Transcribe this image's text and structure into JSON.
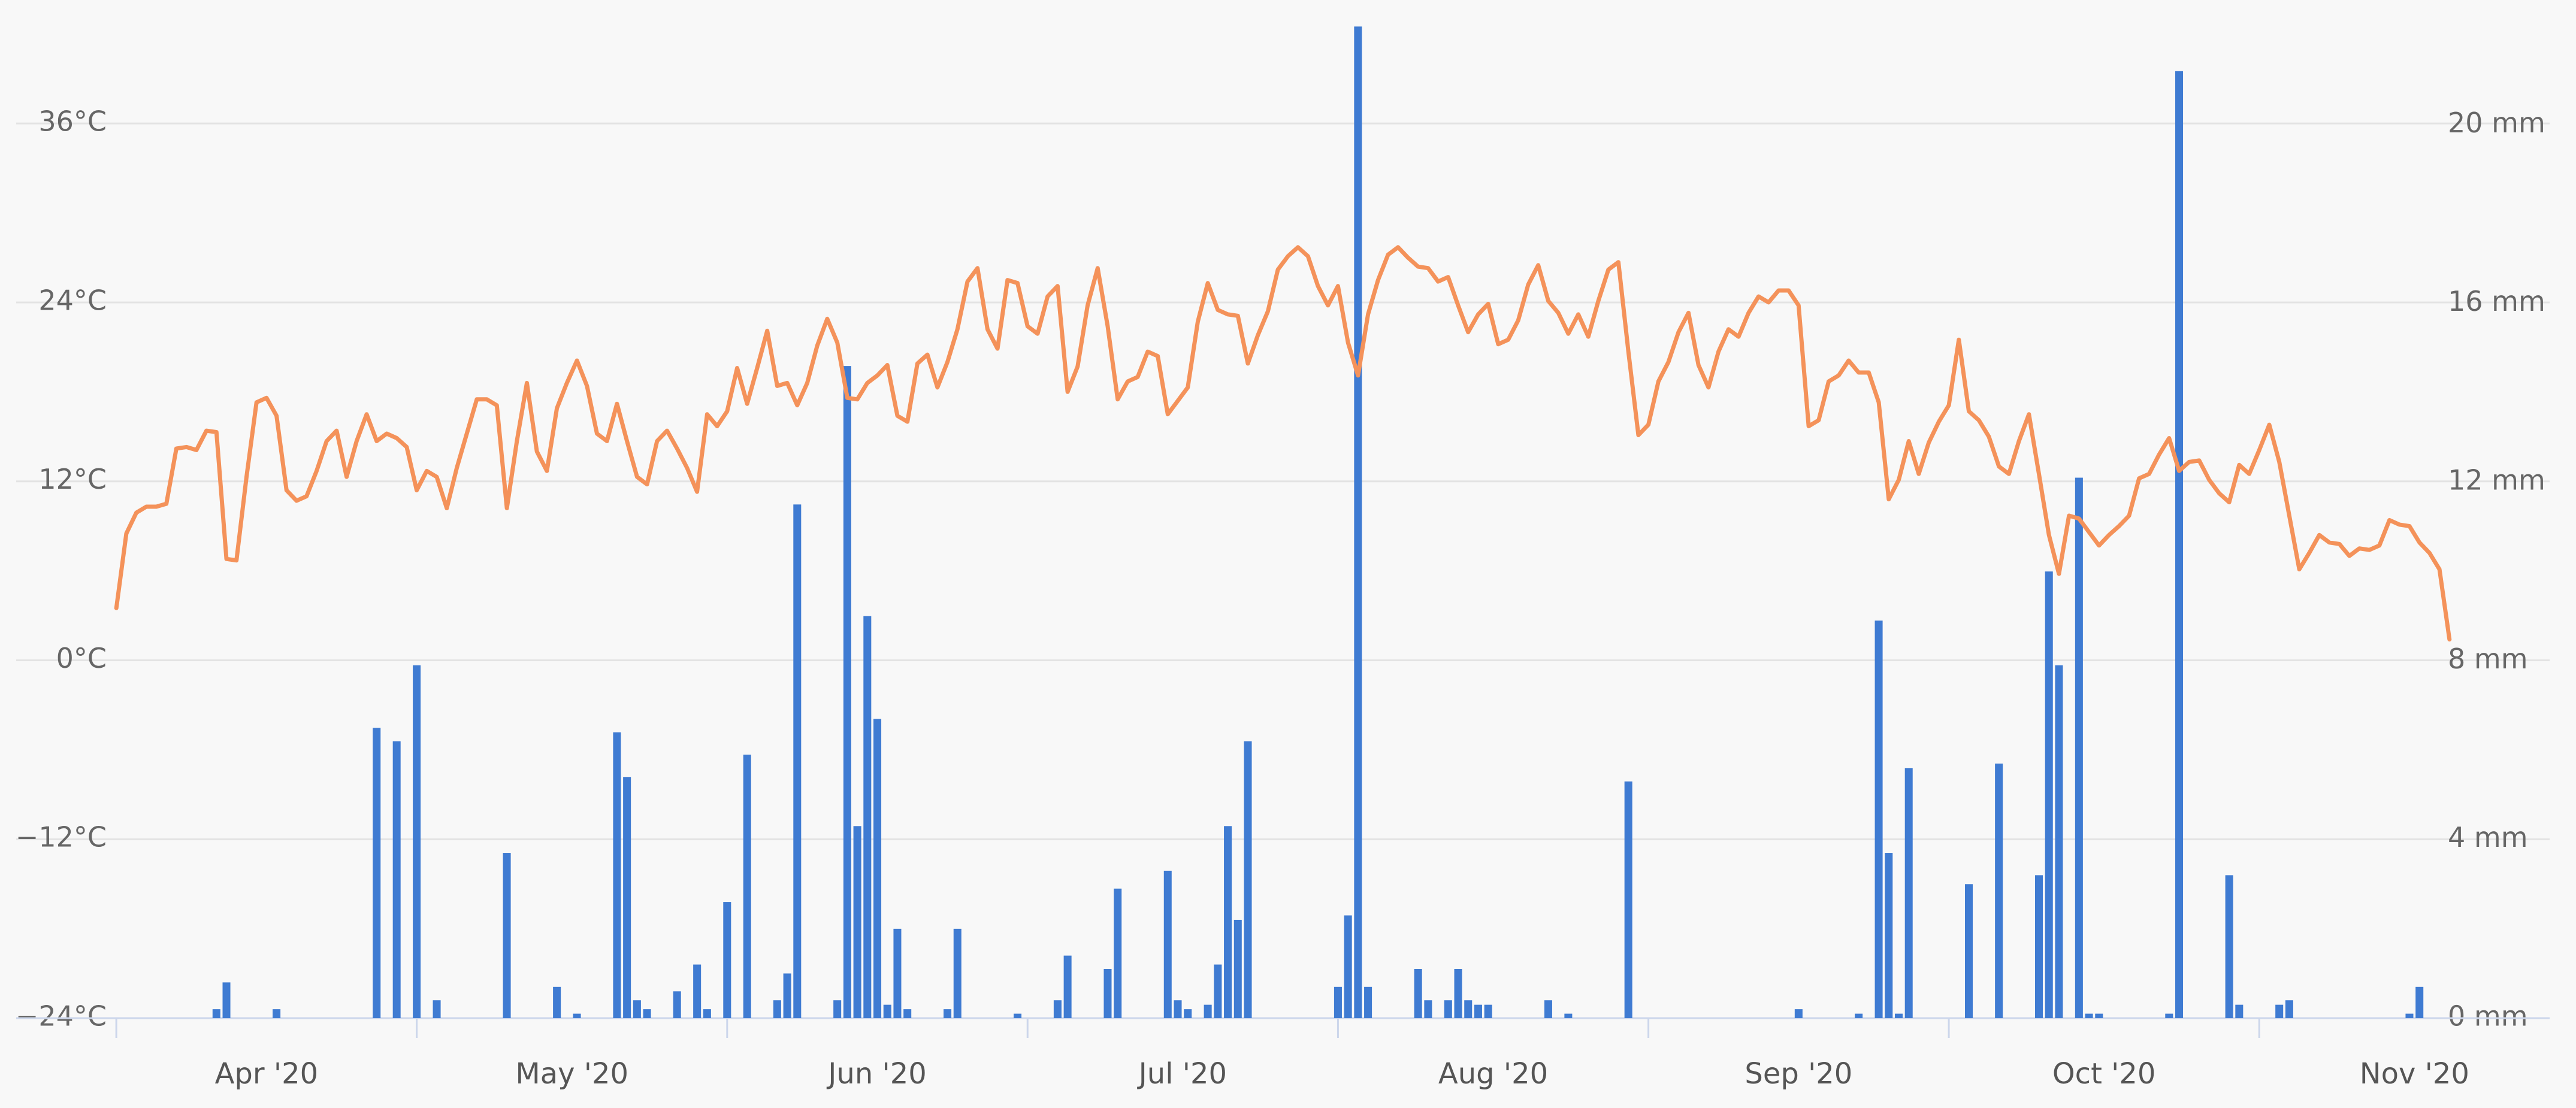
{
  "chart_data": {
    "type": "combo",
    "x": [
      0,
      1,
      2,
      3,
      4,
      5,
      6,
      7,
      8,
      9,
      10,
      11,
      12,
      13,
      14,
      15,
      16,
      17,
      18,
      19,
      20,
      21,
      22,
      23,
      24,
      25,
      26,
      27,
      28,
      29,
      30,
      31,
      32,
      33,
      34,
      35,
      36,
      37,
      38,
      39,
      40,
      41,
      42,
      43,
      44,
      45,
      46,
      47,
      48,
      49,
      50,
      51,
      52,
      53,
      54,
      55,
      56,
      57,
      58,
      59,
      60,
      61,
      62,
      63,
      64,
      65,
      66,
      67,
      68,
      69,
      70,
      71,
      72,
      73,
      74,
      75,
      76,
      77,
      78,
      79,
      80,
      81,
      82,
      83,
      84,
      85,
      86,
      87,
      88,
      89,
      90,
      91,
      92,
      93,
      94,
      95,
      96,
      97,
      98,
      99,
      100,
      101,
      102,
      103,
      104,
      105,
      106,
      107,
      108,
      109,
      110,
      111,
      112,
      113,
      114,
      115,
      116,
      117,
      118,
      119,
      120,
      121,
      122,
      123,
      124,
      125,
      126,
      127,
      128,
      129,
      130,
      131,
      132,
      133,
      134,
      135,
      136,
      137,
      138,
      139,
      140,
      141,
      142,
      143,
      144,
      145,
      146,
      147,
      148,
      149,
      150,
      151,
      152,
      153,
      154,
      155,
      156,
      157,
      158,
      159,
      160,
      161,
      162,
      163,
      164,
      165,
      166,
      167,
      168,
      169,
      170,
      171,
      172,
      173,
      174,
      175,
      176,
      177,
      178,
      179,
      180,
      181,
      182,
      183,
      184,
      185,
      186,
      187,
      188,
      189,
      190,
      191,
      192,
      193,
      194,
      195,
      196,
      197,
      198,
      199,
      200,
      201,
      202,
      203,
      204,
      205,
      206,
      207,
      208,
      209,
      210,
      211,
      212,
      213,
      214,
      215,
      216,
      217,
      218,
      219,
      220,
      221,
      222,
      223,
      224,
      225,
      226,
      227,
      228,
      229,
      230,
      231,
      232,
      233
    ],
    "xlim": [
      -10,
      243
    ],
    "xticks": [
      {
        "value": 0,
        "label": "Apr '20"
      },
      {
        "value": 30,
        "label": "May '20"
      },
      {
        "value": 61,
        "label": "Jun '20"
      },
      {
        "value": 91,
        "label": "Jul '20"
      },
      {
        "value": 122,
        "label": "Aug '20"
      },
      {
        "value": 153,
        "label": "Sep '20"
      },
      {
        "value": 183,
        "label": "Oct '20"
      },
      {
        "value": 214,
        "label": "Nov '20"
      }
    ],
    "ylim": [
      -24,
      44
    ],
    "yticks": [
      {
        "value": -24,
        "label": "−24°C"
      },
      {
        "value": -12,
        "label": "−12°C"
      },
      {
        "value": 0,
        "label": "0°C"
      },
      {
        "value": 12,
        "label": "12°C"
      },
      {
        "value": 24,
        "label": "24°C"
      },
      {
        "value": 36,
        "label": "36°C"
      }
    ],
    "y2lim": [
      0,
      22.7
    ],
    "y2ticks": [
      {
        "value": 0,
        "label": "0 mm"
      },
      {
        "value": 4,
        "label": "4 mm"
      },
      {
        "value": 8,
        "label": "8 mm"
      },
      {
        "value": 12,
        "label": "12 mm"
      },
      {
        "value": 16,
        "label": "16 mm"
      },
      {
        "value": 20,
        "label": "20 mm"
      }
    ],
    "grid": true,
    "series": [
      {
        "type": "line",
        "color": "#f4925a",
        "values": [
          3.5,
          8.5,
          9.9,
          10.3,
          10.3,
          10.5,
          14.2,
          14.3,
          14.1,
          15.4,
          15.3,
          6.8,
          6.7,
          12.3,
          17.3,
          17.6,
          16.4,
          11.4,
          10.7,
          11.0,
          12.7,
          14.7,
          15.4,
          12.3,
          14.7,
          16.5,
          14.7,
          15.2,
          14.9,
          14.3,
          11.4,
          12.7,
          12.3,
          10.2,
          12.9,
          15.2,
          17.5,
          17.5,
          17.1,
          10.2,
          14.7,
          18.6,
          14.0,
          12.7,
          16.9,
          18.6,
          20.1,
          18.4,
          15.2,
          14.7,
          17.2,
          14.7,
          12.3,
          11.8,
          14.7,
          15.4,
          14.2,
          12.9,
          11.3,
          16.5,
          15.7,
          16.7,
          19.6,
          17.2,
          19.6,
          22.1,
          18.4,
          18.6,
          17.1,
          18.6,
          21.1,
          22.9,
          21.3,
          17.6,
          17.5,
          18.6,
          19.1,
          19.8,
          16.4,
          16.0,
          19.9,
          20.5,
          18.3,
          20.0,
          22.2,
          25.4,
          26.3,
          22.2,
          20.9,
          25.5,
          25.3,
          22.4,
          21.9,
          24.4,
          25.1,
          18.0,
          19.7,
          23.8,
          26.3,
          22.4,
          17.5,
          18.7,
          19.0,
          20.7,
          20.4,
          16.5,
          17.4,
          18.3,
          22.7,
          25.3,
          23.5,
          23.2,
          23.1,
          19.9,
          21.8,
          23.4,
          26.2,
          27.1,
          27.7,
          27.1,
          25.1,
          23.8,
          25.1,
          21.3,
          19.1,
          23.2,
          25.5,
          27.2,
          27.7,
          27.0,
          26.4,
          26.3,
          25.4,
          25.7,
          23.8,
          22.0,
          23.2,
          23.9,
          21.2,
          21.5,
          22.8,
          25.2,
          26.5,
          24.1,
          23.3,
          21.9,
          23.2,
          21.7,
          24.1,
          26.2,
          26.7,
          20.7,
          15.1,
          15.8,
          18.7,
          20.0,
          22.0,
          23.3,
          19.8,
          18.3,
          20.7,
          22.2,
          21.7,
          23.3,
          24.4,
          24.0,
          24.8,
          24.8,
          23.8,
          15.7,
          16.1,
          18.7,
          19.1,
          20.1,
          19.3,
          19.3,
          17.3,
          10.8,
          12.1,
          14.7,
          12.5,
          14.6,
          16.0,
          17.1,
          21.5,
          16.7,
          16.1,
          15.0,
          13.0,
          12.5,
          14.7,
          16.5,
          12.5,
          8.4,
          5.8,
          9.7,
          9.5,
          8.6,
          7.7,
          8.4,
          9.0,
          9.7,
          12.2,
          12.5,
          13.8,
          14.9,
          12.7,
          13.3,
          13.4,
          12.1,
          11.2,
          10.6,
          13.1,
          12.5,
          14.1,
          15.8,
          13.3,
          9.7,
          6.1,
          7.2,
          8.4,
          7.9,
          7.8,
          7.0,
          7.5,
          7.4,
          7.7,
          9.4,
          9.1,
          9.0,
          7.9,
          7.2,
          6.1,
          1.4
        ]
      },
      {
        "type": "bar",
        "axis": "y2",
        "color": "#3f7bd2",
        "values": [
          0,
          0,
          0,
          0,
          0,
          0,
          0,
          0,
          0,
          0,
          0.2,
          0.8,
          0,
          0,
          0,
          0,
          0.2,
          0,
          0,
          0,
          0,
          0,
          0,
          0,
          0,
          0,
          6.5,
          0,
          6.2,
          0,
          7.9,
          0,
          0.4,
          0,
          0,
          0,
          0,
          0,
          0,
          3.7,
          0,
          0,
          0,
          0,
          0.7,
          0,
          0.1,
          0,
          0,
          0,
          6.4,
          5.4,
          0.4,
          0.2,
          0,
          0,
          0.6,
          0,
          1.2,
          0.2,
          0,
          2.6,
          0,
          5.9,
          0,
          0,
          0.4,
          1.0,
          11.5,
          0,
          0,
          0,
          0.4,
          14.6,
          4.3,
          9.0,
          6.7,
          0.3,
          2.0,
          0.2,
          0,
          0,
          0,
          0.2,
          2.0,
          0,
          0,
          0,
          0,
          0,
          0.1,
          0,
          0,
          0,
          0.4,
          1.4,
          0,
          0,
          0,
          1.1,
          2.9,
          0,
          0,
          0,
          0,
          3.3,
          0.4,
          0.2,
          0,
          0.3,
          1.2,
          4.3,
          2.2,
          6.2,
          0,
          0,
          0,
          0,
          0,
          0,
          0,
          0,
          0.7,
          2.3,
          22.2,
          0.7,
          0,
          0,
          0,
          0,
          1.1,
          0.4,
          0,
          0.4,
          1.1,
          0.4,
          0.3,
          0.3,
          0,
          0,
          0,
          0,
          0,
          0.4,
          0,
          0.1,
          0,
          0,
          0,
          0,
          0,
          5.3,
          0,
          0,
          0,
          0,
          0,
          0,
          0,
          0,
          0,
          0,
          0,
          0,
          0,
          0,
          0,
          0,
          0.2,
          0,
          0,
          0,
          0,
          0,
          0.1,
          0,
          8.9,
          3.7,
          0.1,
          5.6,
          0,
          0,
          0,
          0,
          0,
          3.0,
          0,
          0,
          5.7,
          0,
          0,
          0,
          3.2,
          10.0,
          7.9,
          0,
          12.1,
          0.1,
          0.1,
          0,
          0,
          0,
          0,
          0,
          0,
          0.1,
          21.2,
          0,
          0,
          0,
          0,
          3.2,
          0.3,
          0,
          0,
          0,
          0.3,
          0.4,
          0,
          0,
          0,
          0,
          0,
          0,
          0,
          0,
          0,
          0,
          0,
          0.1,
          0.7,
          0,
          0,
          0
        ]
      }
    ]
  }
}
